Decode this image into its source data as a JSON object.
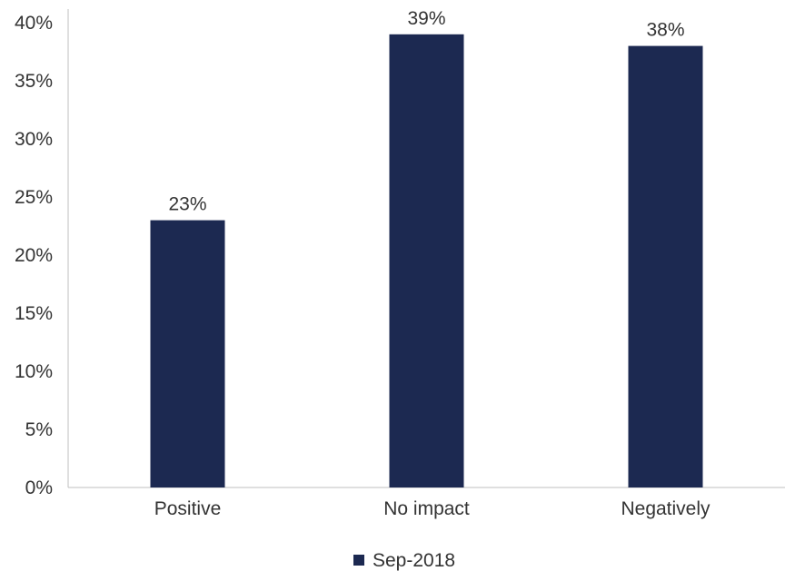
{
  "chart_data": {
    "type": "bar",
    "title": "",
    "xlabel": "",
    "ylabel": "",
    "categories": [
      "Positive",
      "No impact",
      "Negatively"
    ],
    "series": [
      {
        "name": "Sep-2018",
        "values": [
          23,
          39,
          38
        ],
        "data_labels": [
          "23%",
          "39%",
          "38%"
        ],
        "color": "#1c2951"
      }
    ],
    "ylim": [
      0,
      40
    ],
    "yticks": [
      0,
      5,
      10,
      15,
      20,
      25,
      30,
      35,
      40
    ],
    "ytick_labels": [
      "0%",
      "5%",
      "10%",
      "15%",
      "20%",
      "25%",
      "30%",
      "35%",
      "40%"
    ],
    "grid": false,
    "legend_position": "bottom",
    "colors": {
      "bar": "#1c2951",
      "axis": "#bfbfbf",
      "text": "#333333"
    }
  }
}
